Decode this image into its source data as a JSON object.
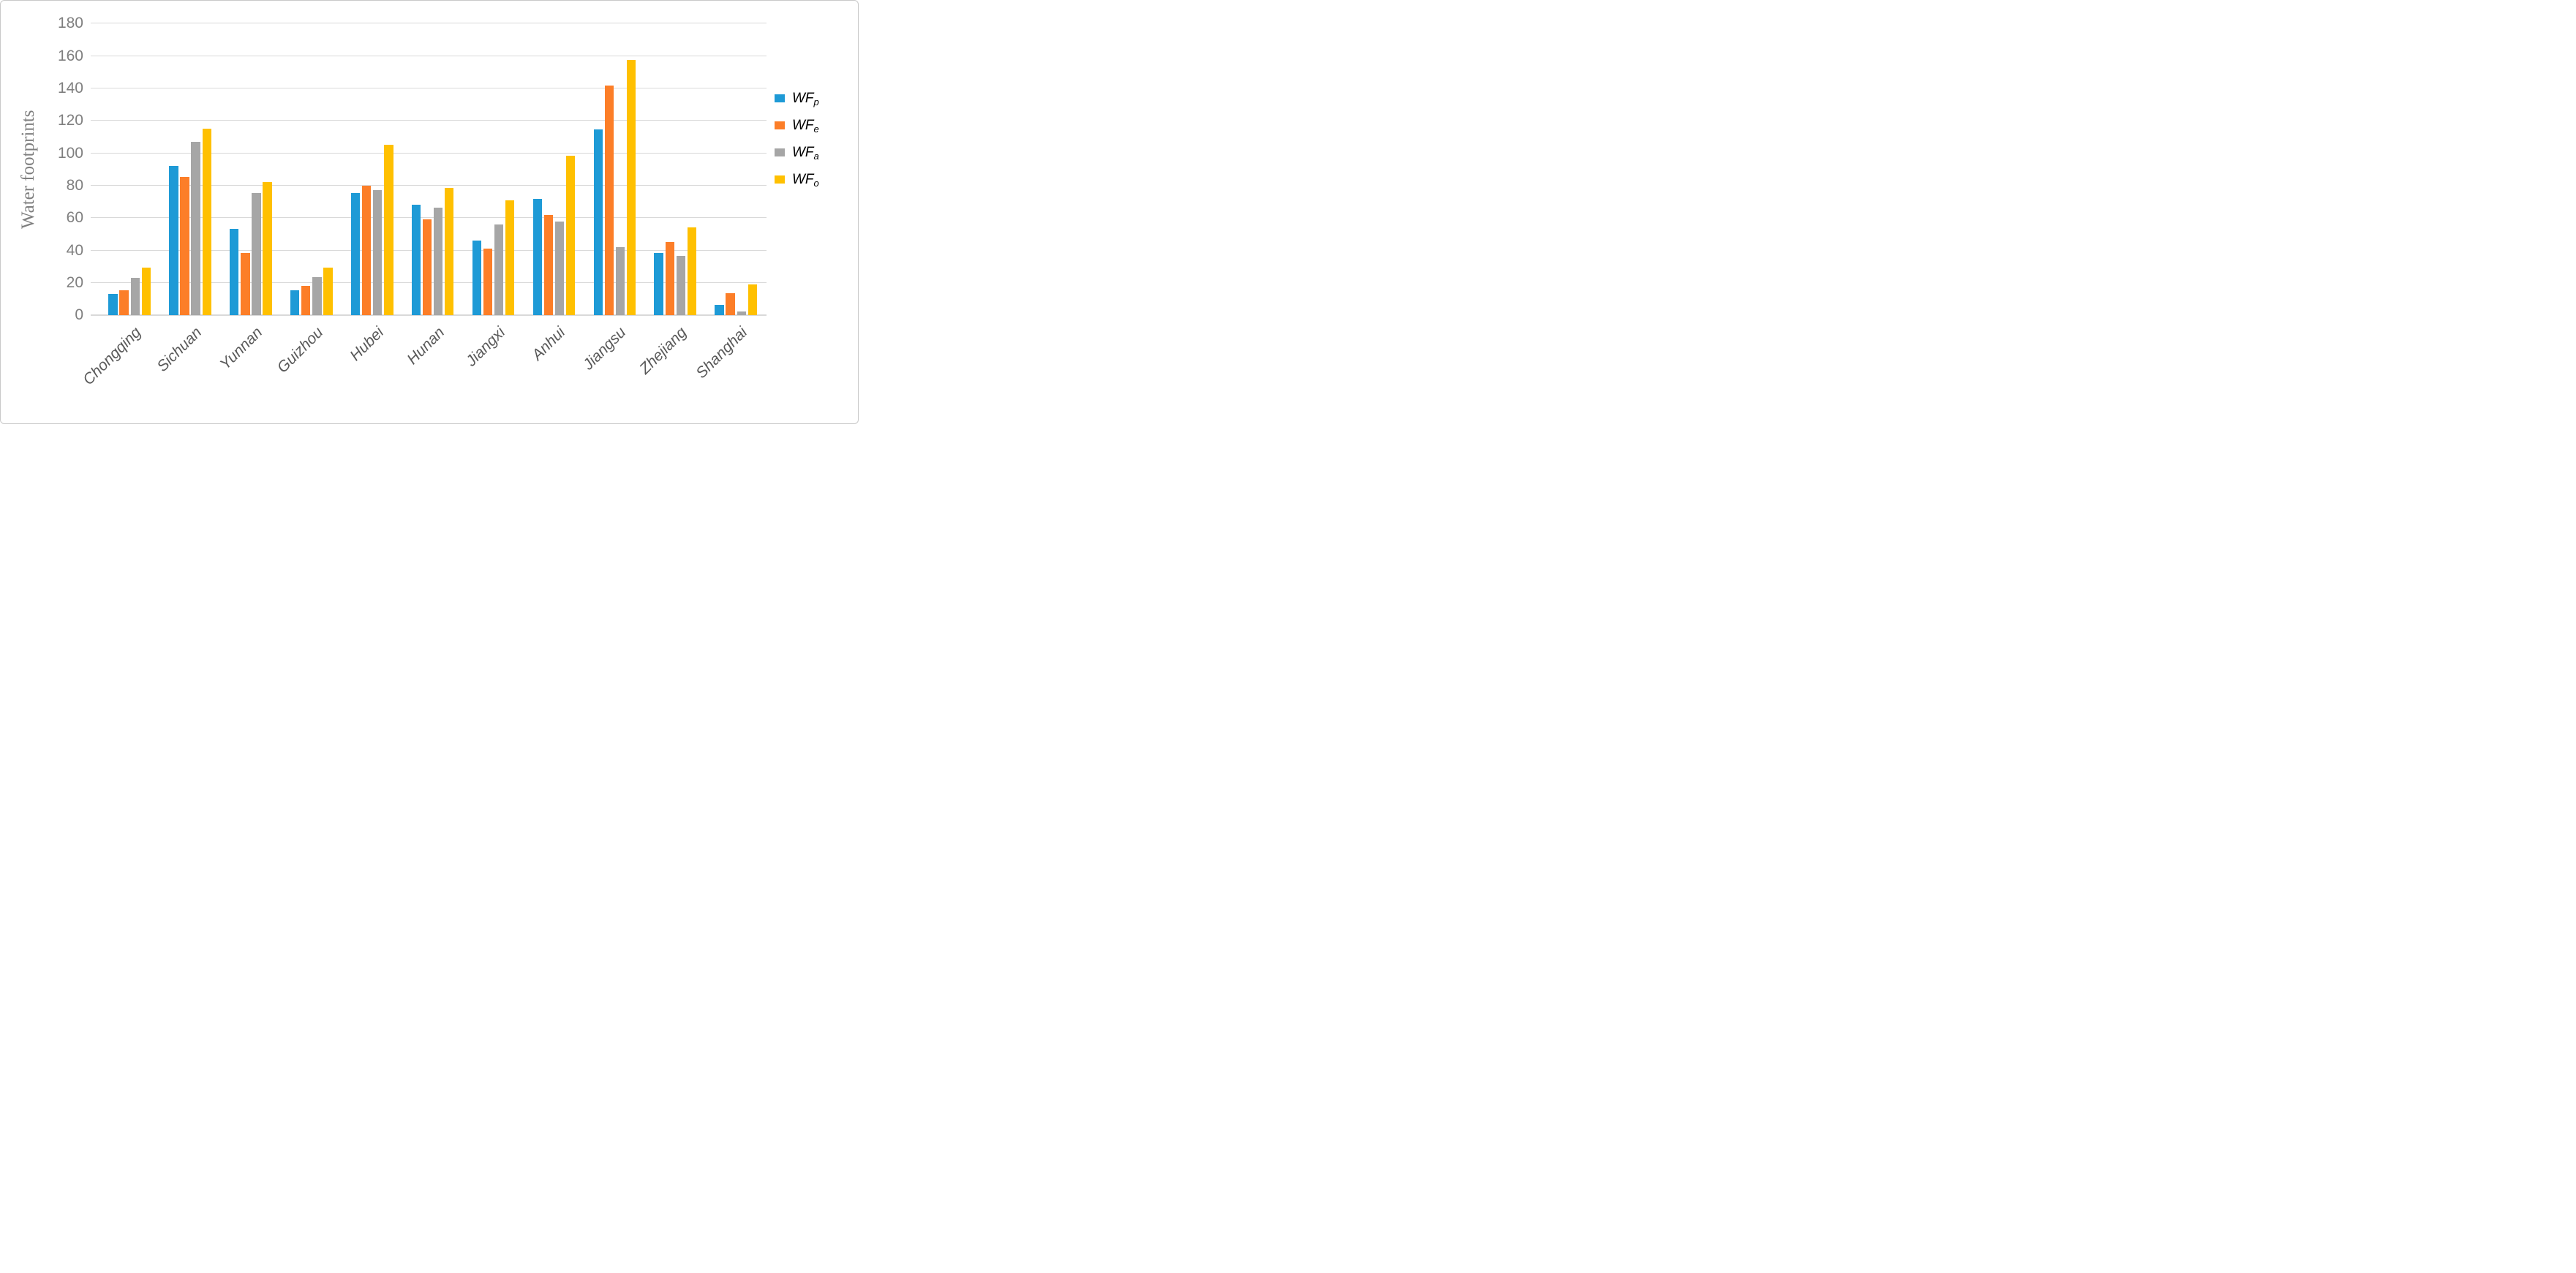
{
  "chart_data": {
    "type": "bar",
    "title": "",
    "xlabel": "",
    "ylabel": "Water footprints",
    "ylim": [
      0,
      180
    ],
    "ytick_step": 20,
    "yticks": [
      0,
      20,
      40,
      60,
      80,
      100,
      120,
      140,
      160,
      180
    ],
    "grid": "horizontal",
    "legend_position": "right",
    "categories": [
      "Chongqing",
      "Sichuan",
      "Yunnan",
      "Guizhou",
      "Hubei",
      "Hunan",
      "Jiangxi",
      "Anhui",
      "Jiangsu",
      "Zhejiang",
      "Shanghai"
    ],
    "series": [
      {
        "name": "WF_p",
        "legend_main": "WF",
        "legend_sub": "p",
        "color": "#1e9ad6",
        "values": [
          13,
          92,
          53,
          15,
          75,
          68,
          46,
          71.5,
          114.5,
          38,
          6
        ]
      },
      {
        "name": "WF_e",
        "legend_main": "WF",
        "legend_sub": "e",
        "color": "#fc7e28",
        "values": [
          15,
          85,
          38,
          18,
          79.5,
          59,
          41,
          61.5,
          141.5,
          45,
          13.5
        ]
      },
      {
        "name": "WF_a",
        "legend_main": "WF",
        "legend_sub": "a",
        "color": "#a6a6a6",
        "values": [
          23,
          107,
          75,
          23.5,
          77,
          66,
          56,
          57.5,
          42,
          36.5,
          2
        ]
      },
      {
        "name": "WF_o",
        "legend_main": "WF",
        "legend_sub": "o",
        "color": "#ffc000",
        "values": [
          29,
          115,
          82,
          29,
          105,
          78.5,
          70.5,
          98,
          157.5,
          54,
          19
        ]
      }
    ],
    "colors": {
      "gridline": "#d9d9d9",
      "tick_text": "#7f7f7f",
      "axis_title_text": "#7f7f7f",
      "category_text": "#595959"
    }
  }
}
